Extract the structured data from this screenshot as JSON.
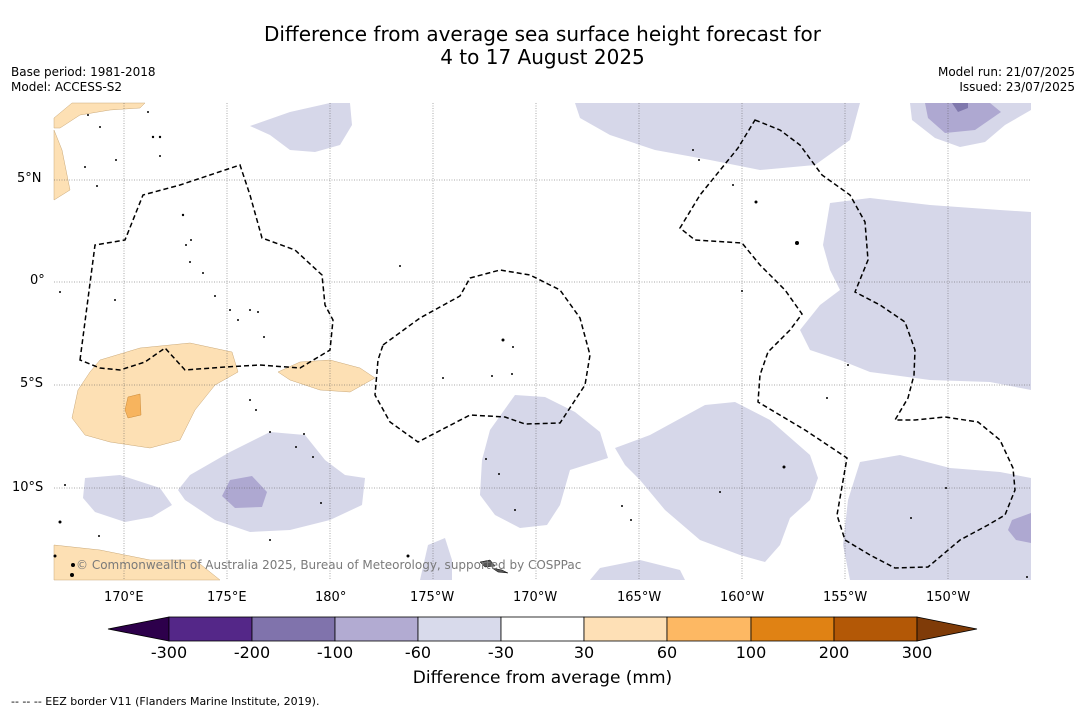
{
  "title": {
    "line1": "Difference from average sea surface height forecast for",
    "line2": "4 to 17 August 2025"
  },
  "meta_left": {
    "base_period": "Base period: 1981-2018",
    "model": "Model: ACCESS-S2"
  },
  "meta_right": {
    "model_run": "Model run: 21/07/2025",
    "issued": "Issued: 23/07/2025"
  },
  "map": {
    "lat_labels": [
      "5°N",
      "0°",
      "5°S",
      "10°S"
    ],
    "lon_labels": [
      "170°E",
      "175°E",
      "180°",
      "175°W",
      "170°W",
      "165°W",
      "160°W",
      "155°W",
      "150°W"
    ],
    "copyright": "© Commonwealth of Australia 2025, Bureau of Meteorology, supported by COSPPac",
    "colors": {
      "light_purple": "#d6d7e9",
      "mid_purple": "#aea8d1",
      "dark_purple": "#8078ad",
      "light_orange": "#fde0b4",
      "mid_orange": "#f7b45e"
    }
  },
  "colorbar": {
    "title": "Difference from average (mm)",
    "tick_labels": [
      "-300",
      "-200",
      "-100",
      "-60",
      "-30",
      "30",
      "60",
      "100",
      "200",
      "300"
    ],
    "colors": [
      "#2d004b",
      "#542788",
      "#8073ac",
      "#b2abd2",
      "#d8daeb",
      "#ffffff",
      "#fee0b6",
      "#fdb863",
      "#e08214",
      "#b35806",
      "#7f3b08"
    ]
  },
  "footer": "-- -- -- EEZ border V11 (Flanders Marine Institute, 2019)."
}
